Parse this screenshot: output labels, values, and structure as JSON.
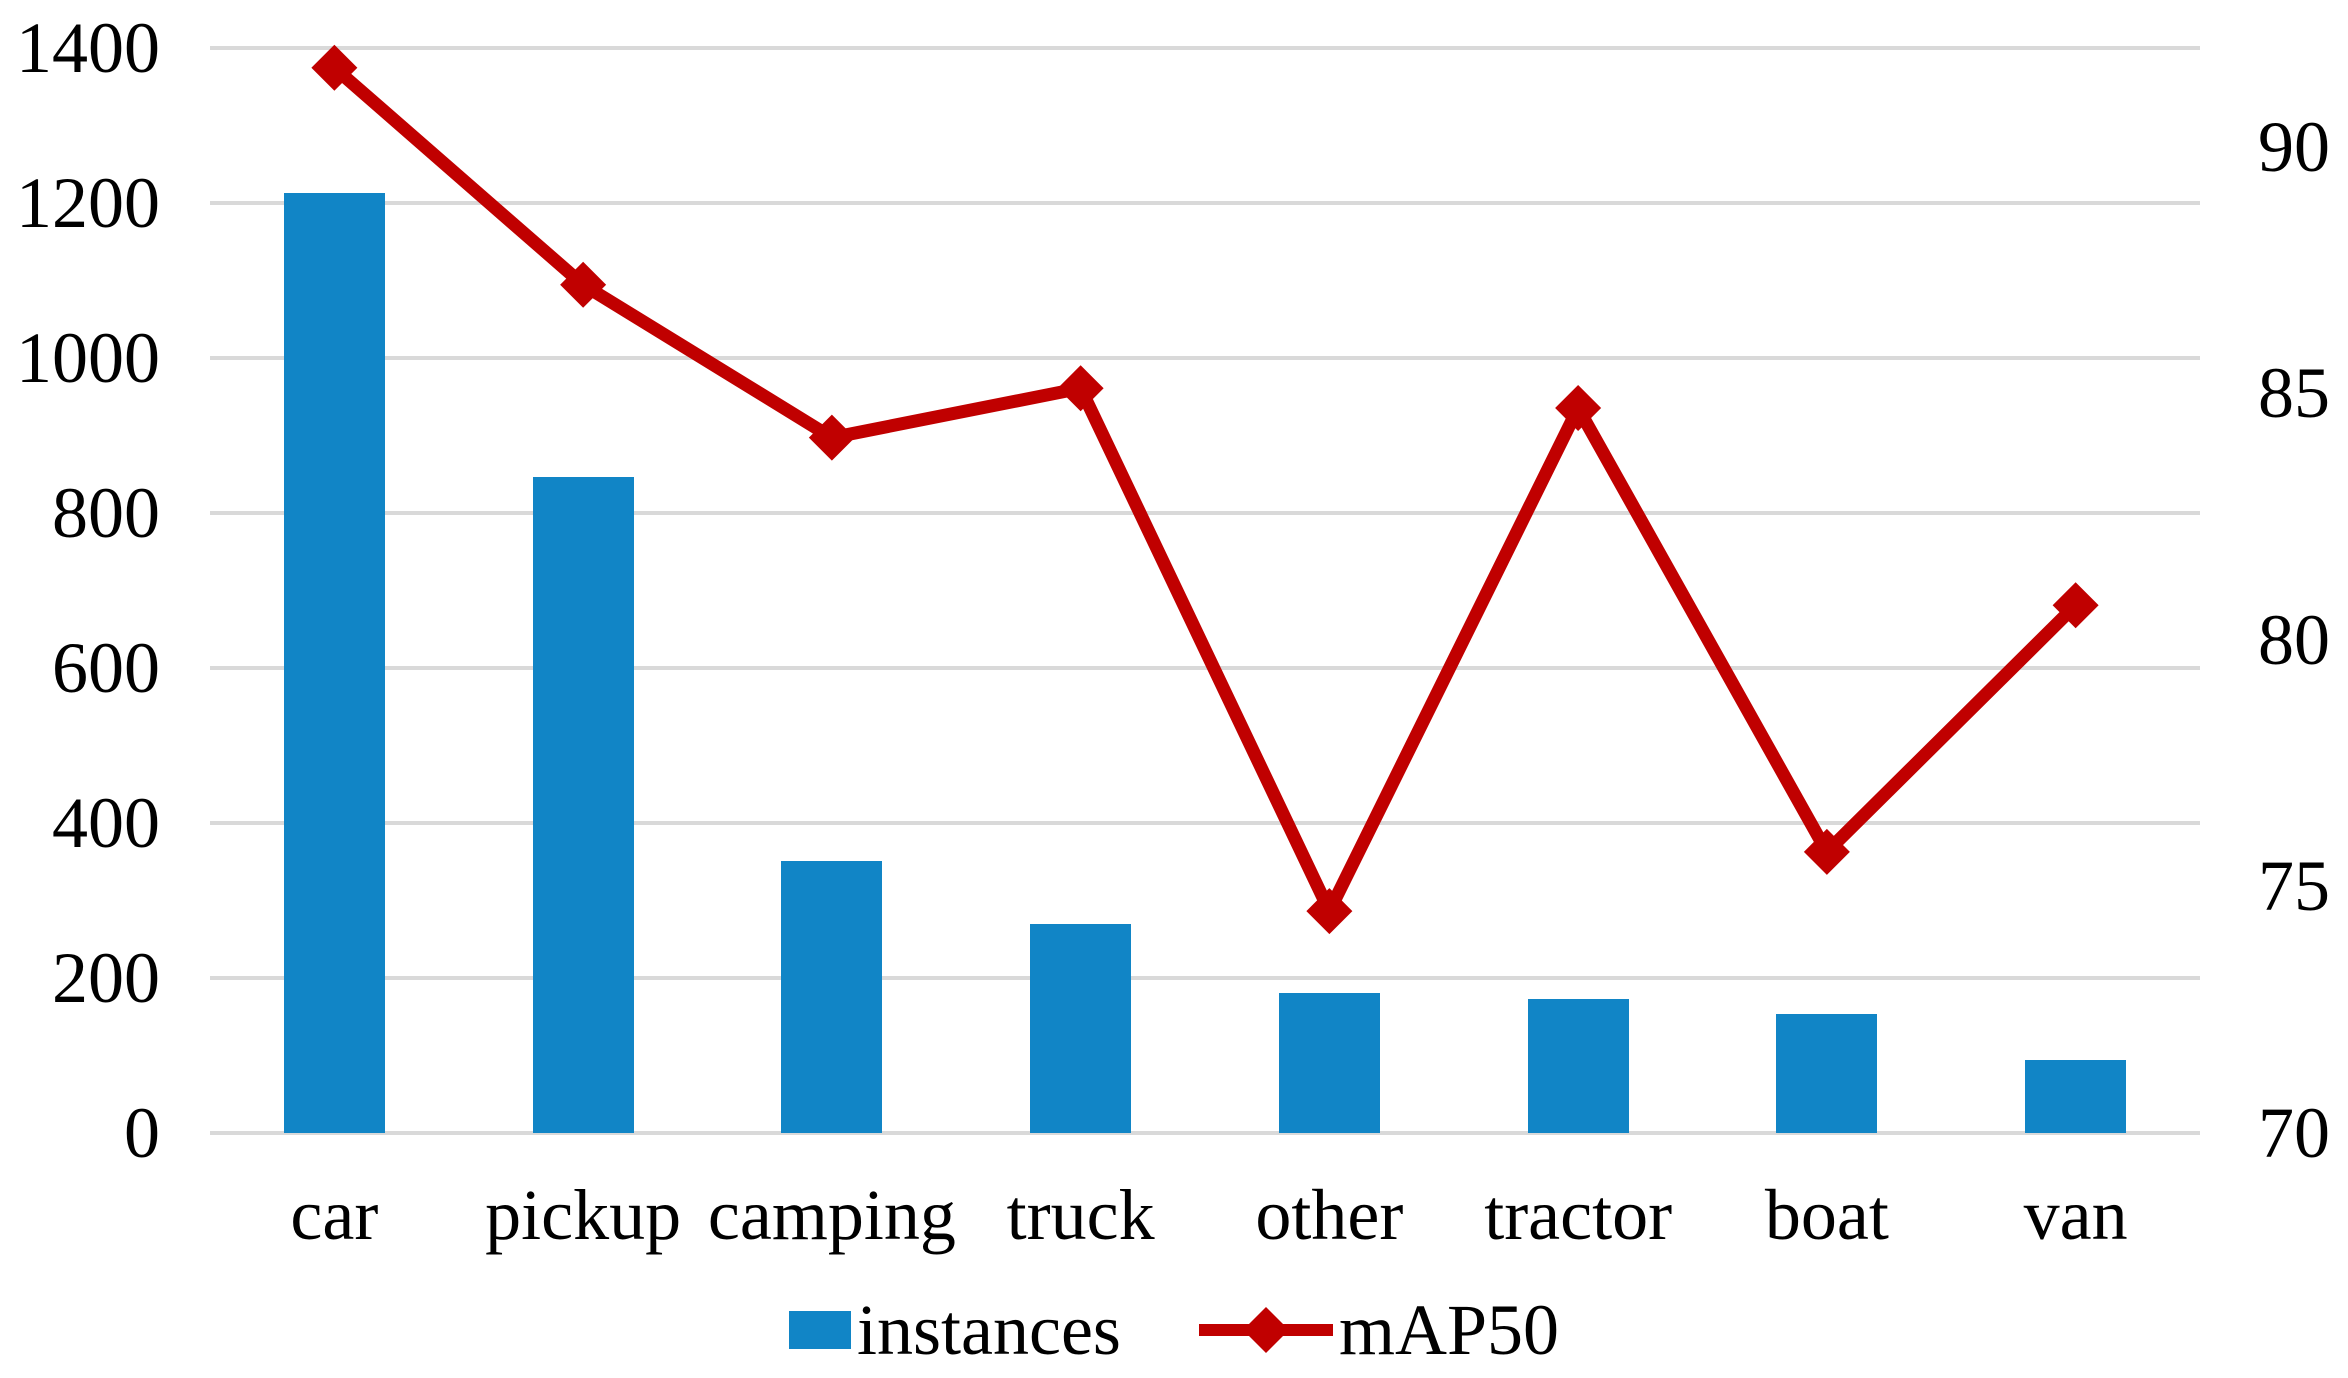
{
  "chart_data": {
    "type": "combo-bar-line",
    "title": "",
    "xlabel": "",
    "ylabel": "",
    "categories": [
      "car",
      "pickup",
      "camping",
      "truck",
      "other",
      "tractor",
      "boat",
      "van"
    ],
    "series": [
      {
        "name": "instances",
        "type": "bar",
        "axis": "left",
        "color": "#1185C6",
        "values": [
          1213,
          846,
          351,
          270,
          181,
          173,
          154,
          94
        ]
      },
      {
        "name": "mAP50",
        "type": "line",
        "axis": "right",
        "color": "#C00000",
        "marker": "diamond",
        "values": [
          91.6,
          87.2,
          84.1,
          85.1,
          74.5,
          84.7,
          75.7,
          80.7
        ]
      }
    ],
    "left_axis": {
      "min": 0,
      "max": 1400,
      "tick_step": 200,
      "tick_labels": [
        "0",
        "200",
        "400",
        "600",
        "800",
        "1000",
        "1200",
        "1400"
      ]
    },
    "right_axis": {
      "min": 70,
      "max": 92,
      "tick_step": 5,
      "tick_values": [
        70,
        75,
        80,
        85,
        90
      ],
      "tick_labels": [
        "70",
        "75",
        "80",
        "85",
        "90"
      ]
    },
    "grid": {
      "horizontal": true,
      "color": "#D9D9D9"
    },
    "legend": {
      "position": "bottom-center",
      "items": [
        "instances",
        "mAP50"
      ]
    },
    "background": "#FFFFFF",
    "text_color": "#000000"
  }
}
